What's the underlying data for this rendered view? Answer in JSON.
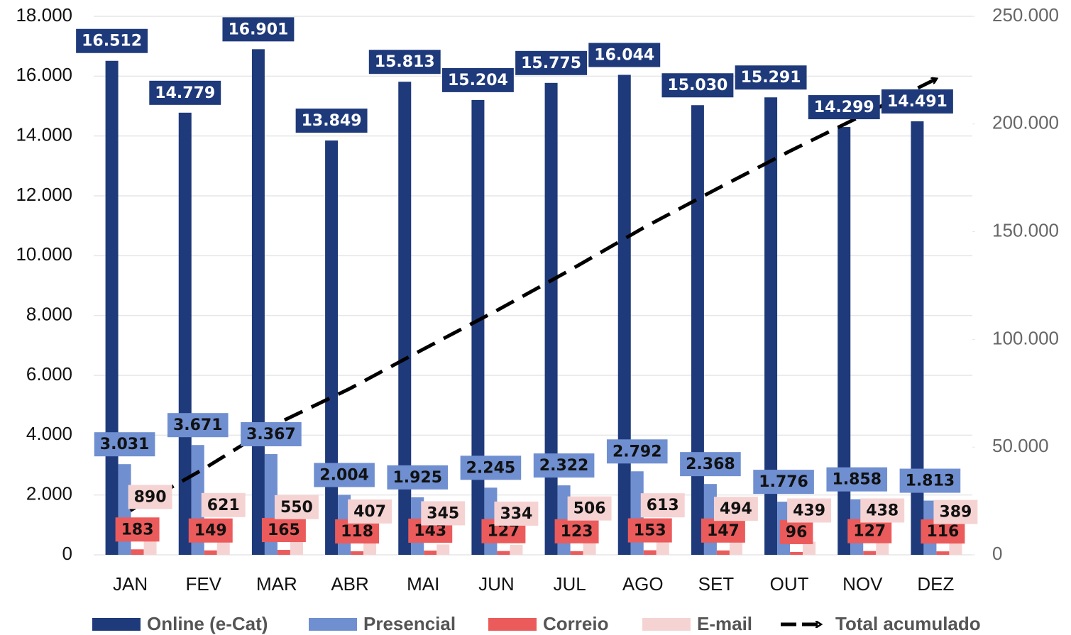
{
  "chart_data": {
    "type": "bar",
    "categories": [
      "JAN",
      "FEV",
      "MAR",
      "ABR",
      "MAI",
      "JUN",
      "JUL",
      "AGO",
      "SET",
      "OUT",
      "NOV",
      "DEZ"
    ],
    "series": [
      {
        "name": "Online (e-Cat)",
        "color": "#1f3a7a",
        "label_color": "#ffffff",
        "values": [
          16512,
          14779,
          16901,
          13849,
          15813,
          15204,
          15775,
          16044,
          15030,
          15291,
          14299,
          14491
        ],
        "value_labels": [
          "16.512",
          "14.779",
          "16.901",
          "13.849",
          "15.813",
          "15.204",
          "15.775",
          "16.044",
          "15.030",
          "15.291",
          "14.299",
          "14.491"
        ]
      },
      {
        "name": "Presencial",
        "color": "#6f8fd0",
        "label_color": "#111111",
        "values": [
          3031,
          3671,
          3367,
          2004,
          1925,
          2245,
          2322,
          2792,
          2368,
          1776,
          1858,
          1813
        ],
        "value_labels": [
          "3.031",
          "3.671",
          "3.367",
          "2.004",
          "1.925",
          "2.245",
          "2.322",
          "2.792",
          "2.368",
          "1.776",
          "1.858",
          "1.813"
        ]
      },
      {
        "name": "Correio",
        "color": "#eb5b5b",
        "label_color": "#111111",
        "values": [
          183,
          149,
          165,
          118,
          143,
          127,
          123,
          153,
          147,
          96,
          127,
          116
        ]
      },
      {
        "name": "E-mail",
        "color": "#f6d3d3",
        "label_color": "#111111",
        "values": [
          890,
          621,
          550,
          407,
          345,
          334,
          506,
          613,
          494,
          439,
          438,
          389
        ]
      },
      {
        "name": "Total acumulado",
        "type": "line",
        "axis": "y2",
        "color": "#000000",
        "values": [
          20616,
          39836,
          60819,
          77197,
          95423,
          113333,
          132059,
          151661,
          169700,
          187302,
          204024,
          220833
        ]
      }
    ],
    "ylim": [
      0,
      18000
    ],
    "yticks": [
      0,
      {
        "value": 2000,
        "label": "2.000"
      },
      {
        "value": 4000,
        "label": "4.000"
      },
      {
        "value": 6000,
        "label": "6.000"
      },
      {
        "value": 8000,
        "label": "8.000"
      },
      {
        "value": 10000,
        "label": "10.000"
      },
      {
        "value": 12000,
        "label": "12.000"
      },
      {
        "value": 14000,
        "label": "14.000"
      },
      {
        "value": 16000,
        "label": "16.000"
      },
      {
        "value": 18000,
        "label": "18.000"
      }
    ],
    "y2lim": [
      0,
      250000
    ],
    "y2ticks": [
      0,
      {
        "value": 50000,
        "label": "50.000"
      },
      {
        "value": 100000,
        "label": "100.000"
      },
      {
        "value": 150000,
        "label": "150.000"
      },
      {
        "value": 200000,
        "label": "200.000"
      },
      {
        "value": 250000,
        "label": "250.000"
      }
    ],
    "grid": true,
    "legend": "bottom"
  }
}
